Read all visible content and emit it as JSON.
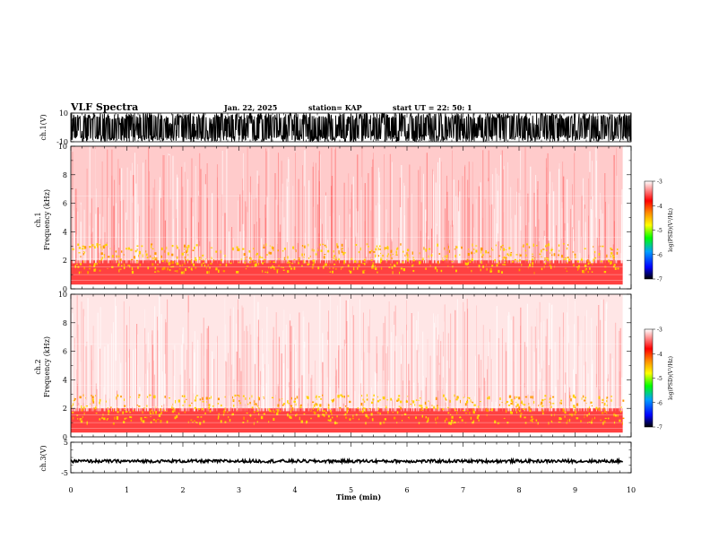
{
  "header": {
    "title": "VLF Spectra",
    "date": "Jan. 22, 2025",
    "station": "station= KAP",
    "start": "start  UT  =   22: 50: 1"
  },
  "chart_data": [
    {
      "type": "line",
      "id": "ch1-wave",
      "ylabel": "ch.1(V)",
      "ylim": [
        -10,
        10
      ],
      "yticks": [
        "10",
        "-10"
      ],
      "x_range_min": [
        0,
        10
      ],
      "waveform": "dense saturated broadband oscillation, mostly clipping near ±10 V"
    },
    {
      "type": "heatmap",
      "id": "ch1-spec",
      "ylabel": "ch.1\nFrequency (kHz)",
      "ylim": [
        0,
        10
      ],
      "yticks": [
        "0",
        "2",
        "4",
        "6",
        "8",
        "10"
      ],
      "x_range_min": [
        0,
        9.85
      ],
      "bands": [
        {
          "fmin_khz": 0.3,
          "fmax_khz": 2.0,
          "level": "strong",
          "color": "#ff2020"
        },
        {
          "fmin_khz": 1.2,
          "fmax_khz": 3.2,
          "level": "peaks",
          "color": "#ffd000"
        },
        {
          "fmin_khz": 2.0,
          "fmax_khz": 10.0,
          "level": "background",
          "color": "#ff6a6a"
        }
      ]
    },
    {
      "type": "heatmap",
      "id": "ch2-spec",
      "ylabel": "ch.2\nFrequency (kHz)",
      "ylim": [
        0,
        10
      ],
      "yticks": [
        "0",
        "2",
        "4",
        "6",
        "8",
        "10"
      ],
      "x_range_min": [
        0,
        9.85
      ],
      "bands": [
        {
          "fmin_khz": 0.3,
          "fmax_khz": 2.0,
          "level": "strong",
          "color": "#ff2020"
        },
        {
          "fmin_khz": 1.0,
          "fmax_khz": 3.0,
          "level": "peaks",
          "color": "#ffd000"
        },
        {
          "fmin_khz": 2.0,
          "fmax_khz": 10.0,
          "level": "background",
          "color": "#ff8a8a"
        }
      ]
    },
    {
      "type": "line",
      "id": "ch3-wave",
      "ylabel": "ch.3(V)",
      "ylim": [
        -5,
        5
      ],
      "yticks": [
        "5",
        "-5"
      ],
      "x_range_min": [
        0,
        9.85
      ],
      "offset_v": -1.2,
      "waveform": "thin noisy trace around about -1.2 V"
    }
  ],
  "colorbar": {
    "label": "log(PSD)(V²/Hz)",
    "ticks": [
      "-3",
      "-4",
      "-5",
      "-6",
      "-7"
    ],
    "range": [
      -7,
      -3
    ],
    "colors": [
      "#000000",
      "#0000ff",
      "#00aaff",
      "#00ff00",
      "#ffff00",
      "#ff8800",
      "#ff0000",
      "#ffffff"
    ]
  },
  "xaxis": {
    "label": "Time (min)",
    "ticks": [
      "0",
      "1",
      "2",
      "3",
      "4",
      "5",
      "6",
      "7",
      "8",
      "9",
      "10"
    ],
    "range": [
      0,
      10
    ]
  }
}
